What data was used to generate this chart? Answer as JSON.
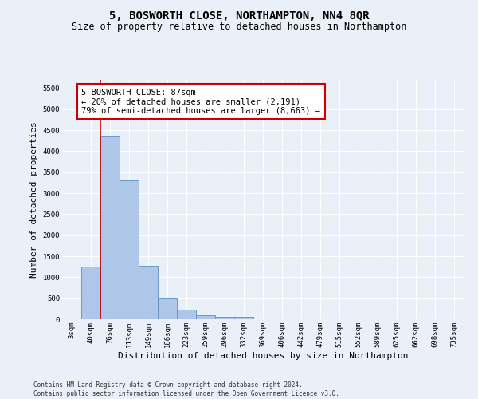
{
  "title": "5, BOSWORTH CLOSE, NORTHAMPTON, NN4 8QR",
  "subtitle": "Size of property relative to detached houses in Northampton",
  "xlabel": "Distribution of detached houses by size in Northampton",
  "ylabel": "Number of detached properties",
  "footer_line1": "Contains HM Land Registry data © Crown copyright and database right 2024.",
  "footer_line2": "Contains public sector information licensed under the Open Government Licence v3.0.",
  "bar_labels": [
    "3sqm",
    "40sqm",
    "76sqm",
    "113sqm",
    "149sqm",
    "186sqm",
    "223sqm",
    "259sqm",
    "296sqm",
    "332sqm",
    "369sqm",
    "406sqm",
    "442sqm",
    "479sqm",
    "515sqm",
    "552sqm",
    "589sqm",
    "625sqm",
    "662sqm",
    "698sqm",
    "735sqm"
  ],
  "bar_values": [
    0,
    1260,
    4350,
    3300,
    1270,
    490,
    220,
    90,
    60,
    50,
    0,
    0,
    0,
    0,
    0,
    0,
    0,
    0,
    0,
    0,
    0
  ],
  "bar_color": "#aec6e8",
  "bar_edge_color": "#5a8fc4",
  "vline_color": "#cc0000",
  "annotation_box_text": "5 BOSWORTH CLOSE: 87sqm\n← 20% of detached houses are smaller (2,191)\n79% of semi-detached houses are larger (8,663) →",
  "ylim": [
    0,
    5700
  ],
  "yticks": [
    0,
    500,
    1000,
    1500,
    2000,
    2500,
    3000,
    3500,
    4000,
    4500,
    5000,
    5500
  ],
  "background_color": "#eaf0f8",
  "grid_color": "#ffffff",
  "title_fontsize": 10,
  "subtitle_fontsize": 8.5,
  "axis_label_fontsize": 8,
  "tick_fontsize": 6.5,
  "annotation_fontsize": 7.5,
  "footer_fontsize": 5.5
}
